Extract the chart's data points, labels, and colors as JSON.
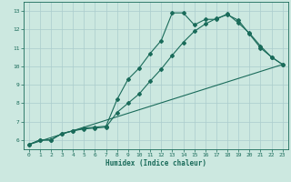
{
  "xlabel": "Humidex (Indice chaleur)",
  "ylabel": "",
  "background_color": "#cce8e0",
  "grid_color": "#aacccc",
  "line_color": "#1a6b5a",
  "xlim": [
    -0.5,
    23.5
  ],
  "ylim": [
    5.5,
    13.5
  ],
  "xticks": [
    0,
    1,
    2,
    3,
    4,
    5,
    6,
    7,
    8,
    9,
    10,
    11,
    12,
    13,
    14,
    15,
    16,
    17,
    18,
    19,
    20,
    21,
    22,
    23
  ],
  "yticks": [
    6,
    7,
    8,
    9,
    10,
    11,
    12,
    13
  ],
  "line1_x": [
    0,
    1,
    2,
    3,
    4,
    5,
    6,
    7,
    8,
    9,
    10,
    11,
    12,
    13,
    14,
    15,
    16,
    17,
    18,
    19,
    20,
    21,
    22,
    23
  ],
  "line1_y": [
    5.75,
    6.0,
    6.0,
    6.35,
    6.5,
    6.65,
    6.7,
    6.75,
    8.2,
    9.3,
    9.9,
    10.7,
    11.4,
    12.9,
    12.9,
    12.25,
    12.55,
    12.55,
    12.85,
    12.35,
    11.8,
    11.1,
    10.5,
    10.1
  ],
  "line2_x": [
    0,
    1,
    2,
    3,
    4,
    5,
    6,
    7,
    8,
    9,
    10,
    11,
    12,
    13,
    14,
    15,
    16,
    17,
    18,
    19,
    20,
    21,
    22,
    23
  ],
  "line2_y": [
    5.75,
    6.0,
    6.0,
    6.35,
    6.5,
    6.6,
    6.65,
    6.7,
    7.5,
    8.0,
    8.5,
    9.2,
    9.85,
    10.6,
    11.3,
    11.9,
    12.3,
    12.6,
    12.8,
    12.5,
    11.75,
    11.0,
    10.5,
    10.1
  ],
  "line3_x": [
    0,
    23
  ],
  "line3_y": [
    5.75,
    10.1
  ]
}
